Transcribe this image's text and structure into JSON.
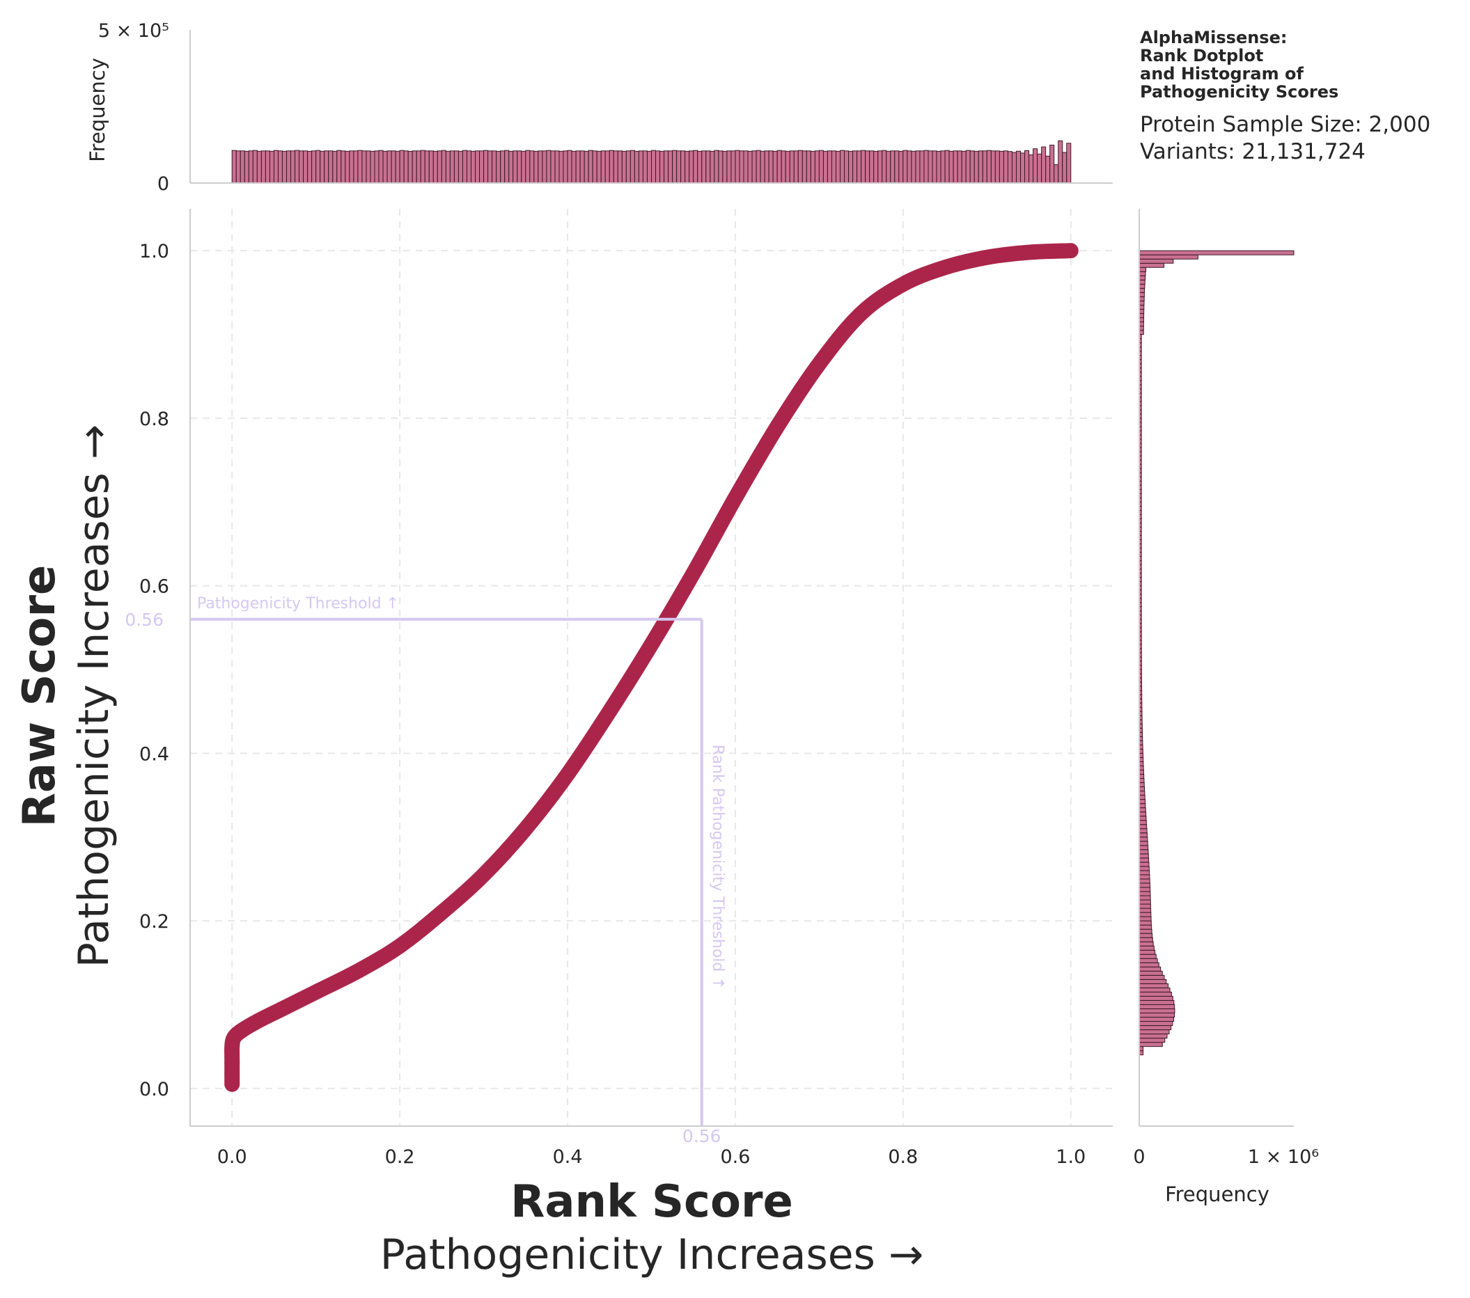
{
  "chart_data": [
    {
      "panel": "main",
      "type": "scatter",
      "xlabel": "Rank Score",
      "xlabel_sub": "Pathogenicity Increases →",
      "ylabel": "Raw Score",
      "ylabel_sub": "Pathogenicity Increases →",
      "xlim": [
        -0.05,
        1.05
      ],
      "ylim": [
        -0.045,
        1.05
      ],
      "xticks": [
        "0.0",
        "0.2",
        "0.4",
        "0.6",
        "0.8",
        "1.0"
      ],
      "yticks": [
        "0.0",
        "0.2",
        "0.4",
        "0.6",
        "0.8",
        "1.0"
      ],
      "grid": true,
      "color": "#ab254b",
      "series": [
        {
          "x": [
            0.0,
            0.0,
            0.0,
            0.0,
            0.002,
            0.01,
            0.03,
            0.06,
            0.1,
            0.15,
            0.2,
            0.25,
            0.3,
            0.35,
            0.4,
            0.45,
            0.5,
            0.55,
            0.6,
            0.65,
            0.7,
            0.75,
            0.8,
            0.85,
            0.9,
            0.95,
            1.0
          ],
          "y": [
            0.005,
            0.02,
            0.035,
            0.05,
            0.06,
            0.068,
            0.08,
            0.095,
            0.115,
            0.14,
            0.17,
            0.21,
            0.255,
            0.31,
            0.375,
            0.45,
            0.53,
            0.615,
            0.705,
            0.79,
            0.865,
            0.925,
            0.96,
            0.98,
            0.992,
            0.998,
            1.0
          ]
        }
      ],
      "annotations": {
        "threshold_value": 0.56,
        "x_marker_label": "0.56",
        "y_marker_label": "0.56",
        "horizontal_label": "Pathogenicity Threshold ↑",
        "vertical_label": "Rank Pathogenicity Threshold ↑",
        "color": "#d4c8f0"
      }
    },
    {
      "panel": "top-histogram",
      "type": "bar",
      "ylabel": "Frequency",
      "ytick_zero": "0",
      "ytick_max_label": "5 × 10⁵",
      "ylim": [
        0,
        500000
      ],
      "x_range": [
        0.0,
        1.0
      ],
      "bins": 200,
      "typical_frequency": 105000,
      "tail_values": [
        103000,
        100000,
        104000,
        98000,
        106000,
        92000,
        112000,
        95000,
        118000,
        88000,
        124000,
        60000,
        138000,
        100000,
        130000
      ],
      "color": "#c97090",
      "edgecolor": "#3a1a26"
    },
    {
      "panel": "right-histogram",
      "type": "bar",
      "orientation": "horizontal",
      "xlabel": "Frequency",
      "xtick_zero": "0",
      "xtick_max_label": "1 × 10⁶",
      "xlim": [
        0,
        1000000
      ],
      "y_range": [
        0.0,
        1.0
      ],
      "bins": 200,
      "color": "#c97090",
      "edgecolor": "#3a1a26"
    }
  ],
  "info": {
    "title": "AlphaMissense:\nRank Dotplot\nand Histogram of\nPathogenicity Scores",
    "protein_sample_size": "Protein Sample Size: 2,000",
    "variants": "Variants: 21,131,724"
  }
}
